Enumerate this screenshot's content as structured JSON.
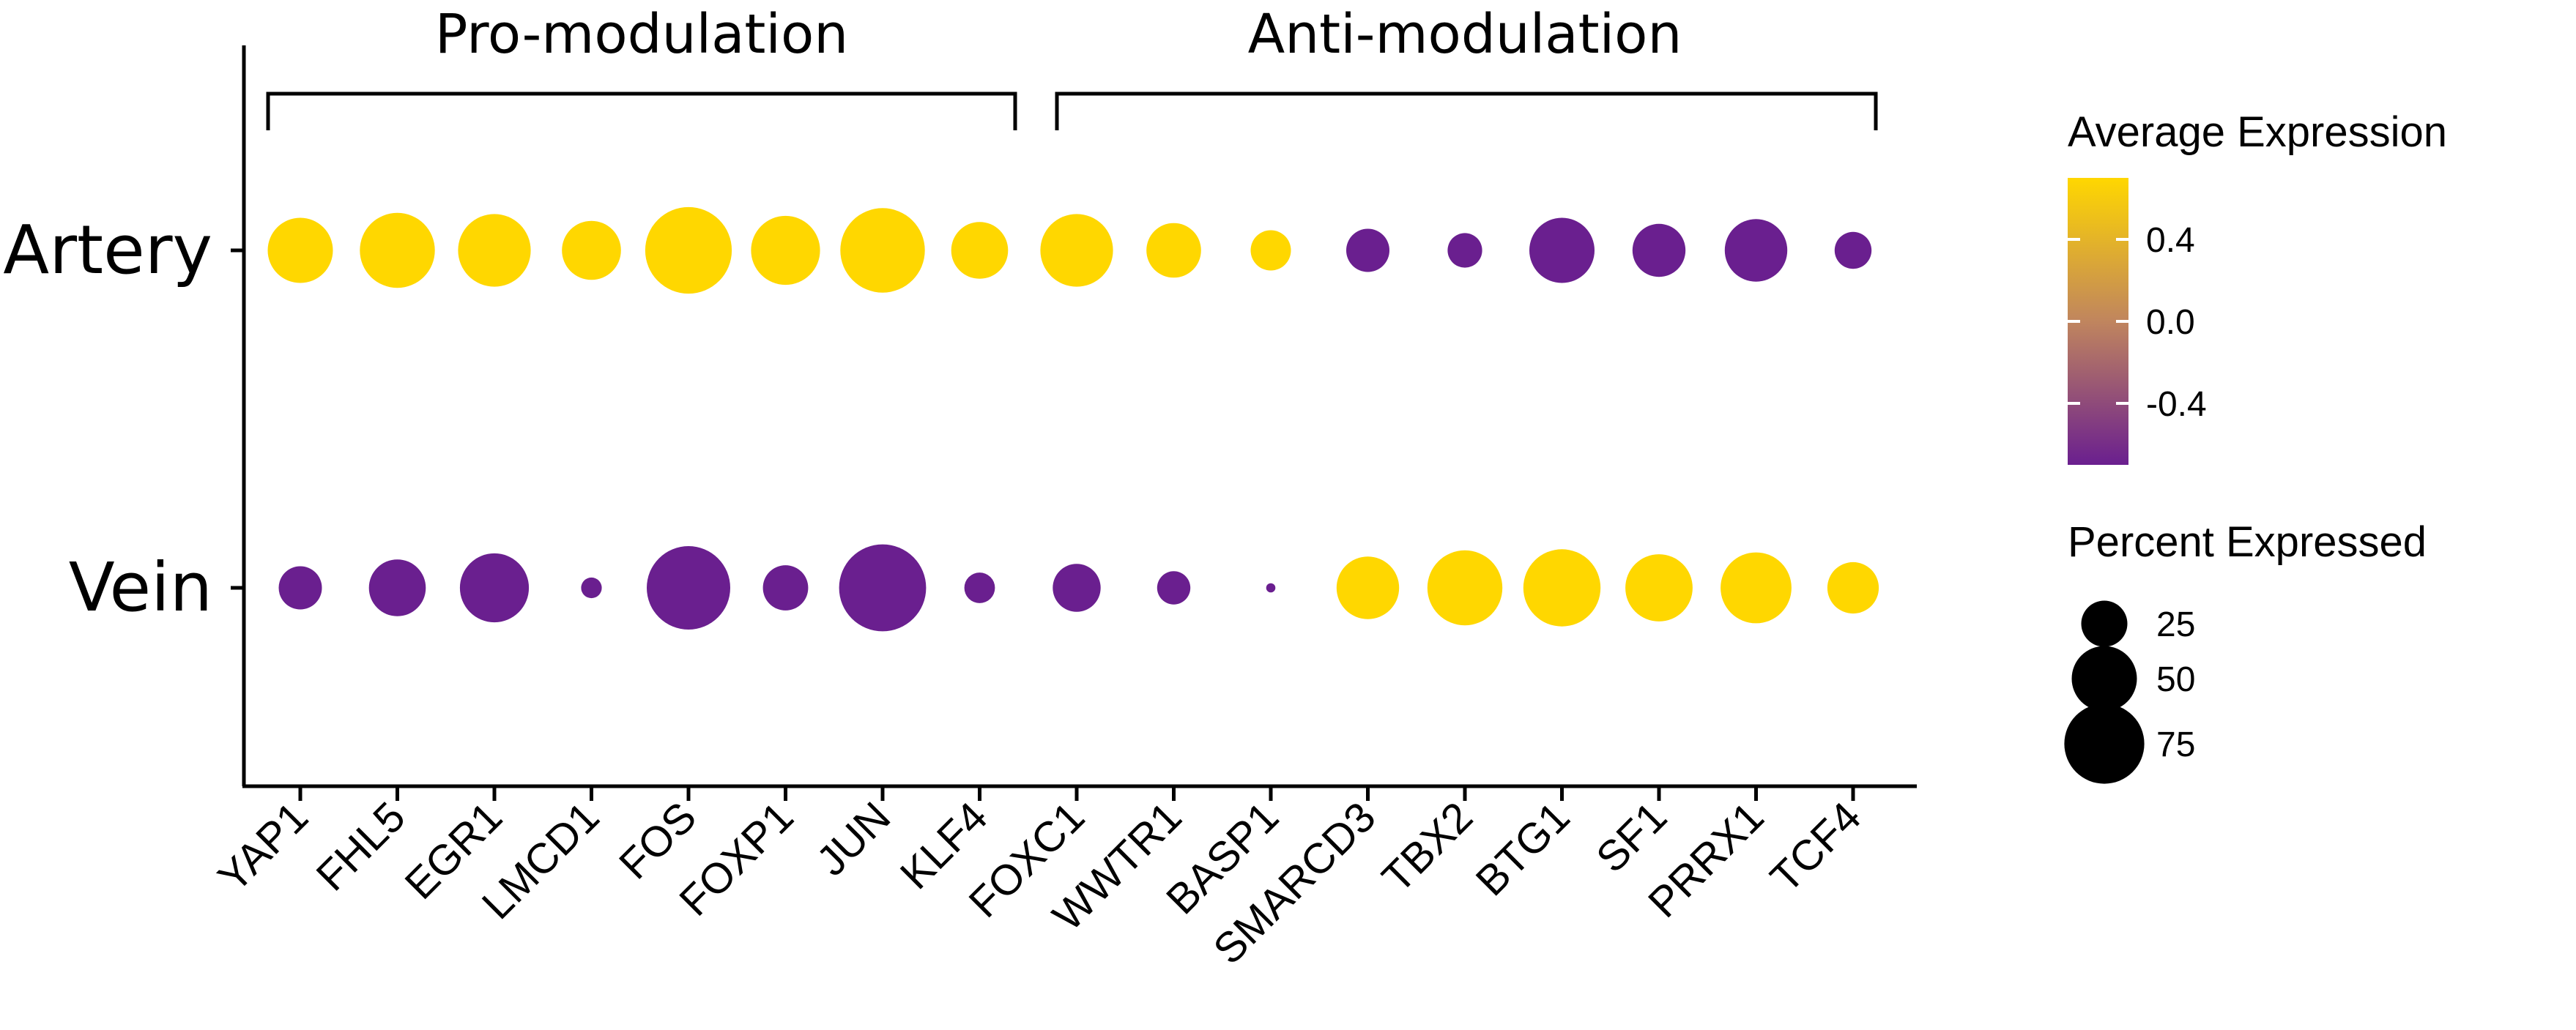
{
  "chart_data": {
    "type": "dotplot",
    "rows": [
      "Artery",
      "Vein"
    ],
    "genes": [
      "YAP1",
      "FHL5",
      "EGR1",
      "LMCD1",
      "FOS",
      "FOXP1",
      "JUN",
      "KLF4",
      "FOXC1",
      "WWTR1",
      "BASP1",
      "SMARCD3",
      "TBX2",
      "BTG1",
      "SF1",
      "PRRX1",
      "TCF4"
    ],
    "groups": [
      {
        "label": "Pro-modulation",
        "from": "YAP1",
        "to": "KLF4"
      },
      {
        "label": "Anti-modulation",
        "from": "FOXC1",
        "to": "TCF4"
      }
    ],
    "average_expression": {
      "Artery": [
        0.7,
        0.7,
        0.7,
        0.7,
        0.7,
        0.7,
        0.7,
        0.7,
        0.7,
        0.7,
        0.7,
        -0.7,
        -0.7,
        -0.7,
        -0.7,
        -0.7,
        -0.7
      ],
      "Vein": [
        -0.7,
        -0.7,
        -0.7,
        -0.7,
        -0.7,
        -0.7,
        -0.7,
        -0.7,
        -0.7,
        -0.7,
        -0.7,
        0.7,
        0.7,
        0.7,
        0.7,
        0.7,
        0.7
      ]
    },
    "percent_expressed": {
      "Artery": [
        50,
        66,
        62,
        41,
        88,
        56,
        84,
        38,
        62,
        35,
        19,
        22,
        14,
        50,
        33,
        46,
        16
      ],
      "Vein": [
        22,
        38,
        56,
        5,
        82,
        24,
        89,
        11,
        27,
        13,
        1,
        46,
        66,
        70,
        53,
        59,
        31
      ]
    },
    "color_scale": {
      "title": "Average Expression",
      "ticks": [
        "0.4",
        "0.0",
        "-0.4"
      ],
      "tick_values": [
        0.4,
        0.0,
        -0.4
      ],
      "range": [
        -0.7,
        0.7
      ],
      "low_color": "#6a1f8f",
      "mid_color": "#c0855e",
      "high_color": "#ffd700"
    },
    "size_scale": {
      "title": "Percent Expressed",
      "ticks": [
        "25",
        "50",
        "75"
      ],
      "tick_values": [
        25,
        50,
        75
      ]
    }
  }
}
